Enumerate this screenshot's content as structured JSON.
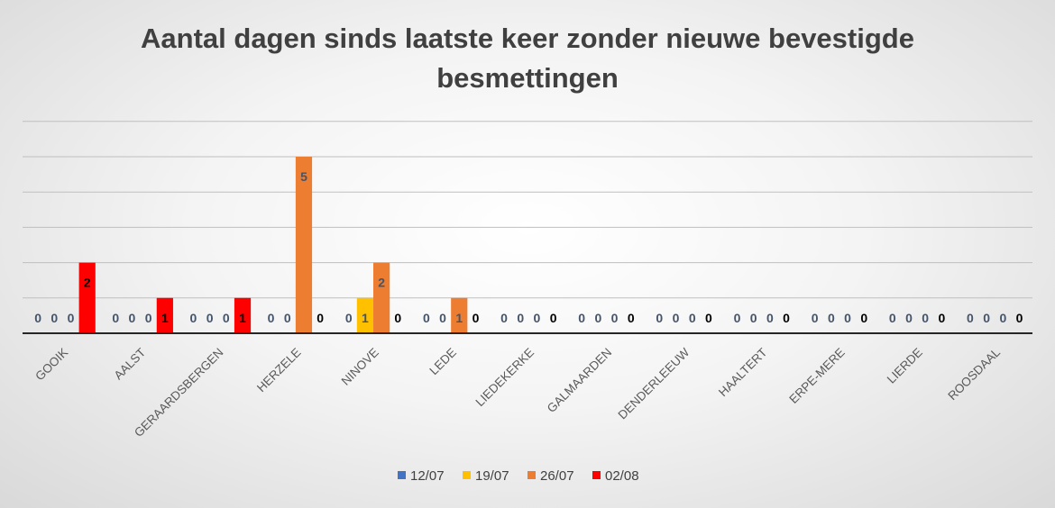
{
  "chart_data": {
    "type": "bar",
    "title_lines": [
      "Aantal dagen sinds laatste keer zonder nieuwe bevestigde",
      "besmettingen"
    ],
    "xlabel": "",
    "ylabel": "",
    "categories": [
      "GOOIK",
      "AALST",
      "GERAARDSBERGEN",
      "HERZELE",
      "NINOVE",
      "LEDE",
      "LIEDEKERKE",
      "GALMAARDEN",
      "DENDERLEEUW",
      "HAALTERT",
      "ERPE-MERE",
      "LIERDE",
      "ROOSDAAL"
    ],
    "series": [
      {
        "name": "12/07",
        "color": "#4472C4",
        "label_color": "#44546A",
        "values": [
          0,
          0,
          0,
          0,
          0,
          0,
          0,
          0,
          0,
          0,
          0,
          0,
          0
        ]
      },
      {
        "name": "19/07",
        "color": "#FFC000",
        "label_color": "#44546A",
        "values": [
          0,
          0,
          0,
          0,
          1,
          0,
          0,
          0,
          0,
          0,
          0,
          0,
          0
        ]
      },
      {
        "name": "26/07",
        "color": "#ED7D31",
        "label_color": "#44546A",
        "values": [
          0,
          0,
          0,
          5,
          2,
          1,
          0,
          0,
          0,
          0,
          0,
          0,
          0
        ]
      },
      {
        "name": "02/08",
        "color": "#FF0000",
        "label_color": "#000000",
        "values": [
          2,
          1,
          1,
          0,
          0,
          0,
          0,
          0,
          0,
          0,
          0,
          0,
          0
        ]
      }
    ],
    "ylim": [
      0,
      5
    ],
    "gridlines": true,
    "legend_position": "bottom"
  }
}
